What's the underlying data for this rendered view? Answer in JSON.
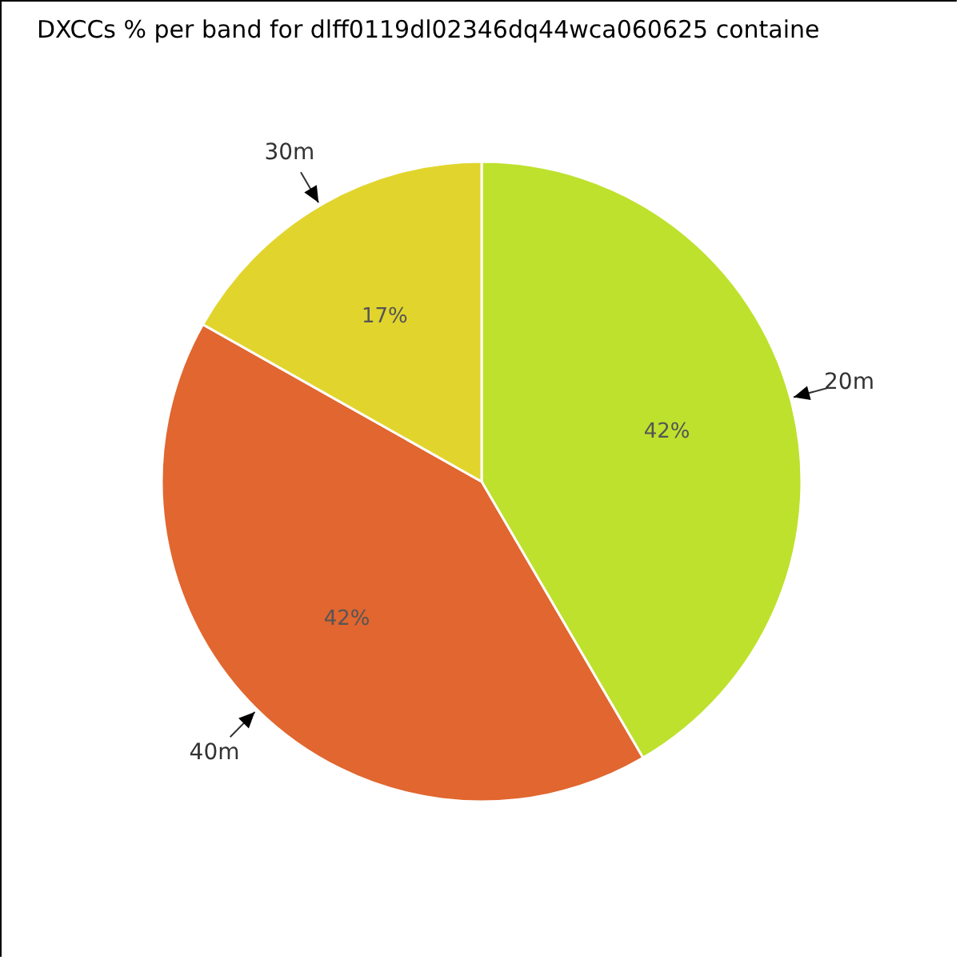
{
  "chart_data": {
    "type": "pie",
    "title": "DXCCs % per band for dlff0119dl02346dq44wca060625 containe",
    "categories": [
      "20m",
      "40m",
      "30m"
    ],
    "values": [
      42,
      42,
      17
    ],
    "value_labels": [
      "42%",
      "42%",
      "17%"
    ],
    "colors": [
      "#bee12d",
      "#e1662f",
      "#e1d52d"
    ]
  }
}
